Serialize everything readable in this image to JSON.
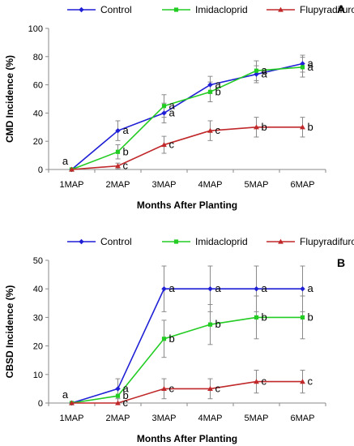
{
  "chart_data": [
    {
      "type": "line",
      "panel_label": "A",
      "categories": [
        "1MAP",
        "2MAP",
        "3MAP",
        "4MAP",
        "5MAP",
        "6MAP"
      ],
      "xlabel": "Months After Planting",
      "ylabel": "CMD Incidence (%)",
      "ylim": [
        0,
        100
      ],
      "yticks": [
        0,
        20,
        40,
        60,
        80,
        100
      ],
      "legend_position": "top",
      "grid": false,
      "series": [
        {
          "name": "Control",
          "color": "#1f1fd6",
          "marker": "diamond",
          "values": [
            0,
            27.5,
            40,
            60,
            67.5,
            75
          ],
          "errors": [
            0,
            7,
            7,
            6,
            6,
            6
          ],
          "letters": [
            "a",
            "a",
            "a",
            "a",
            "a",
            "a"
          ]
        },
        {
          "name": "Imidacloprid",
          "color": "#22cc22",
          "marker": "square",
          "values": [
            0,
            12.5,
            45,
            55,
            70,
            72.5
          ],
          "errors": [
            0,
            5,
            8,
            7,
            7,
            7
          ],
          "letters": [
            "",
            "b",
            "a",
            "b",
            "a",
            "a"
          ]
        },
        {
          "name": "Flupyradifurone",
          "color": "#c0282a",
          "marker": "triangle",
          "values": [
            0,
            2.5,
            17.5,
            27.5,
            30,
            30
          ],
          "errors": [
            0,
            2,
            6,
            7,
            7,
            7
          ],
          "letters": [
            "",
            "c",
            "c",
            "c",
            "b",
            "b"
          ]
        }
      ]
    },
    {
      "type": "line",
      "panel_label": "B",
      "categories": [
        "1MAP",
        "2MAP",
        "3MAP",
        "4MAP",
        "5MAP",
        "6MAP"
      ],
      "xlabel": "Months After Planting",
      "ylabel": "CBSD Incidence (%)",
      "ylim": [
        0,
        50
      ],
      "yticks": [
        0,
        10,
        20,
        30,
        40,
        50
      ],
      "legend_position": "top",
      "grid": false,
      "series": [
        {
          "name": "Control",
          "color": "#1f1fd6",
          "marker": "diamond",
          "values": [
            0,
            5,
            40,
            40,
            40,
            40
          ],
          "errors": [
            0,
            3.5,
            8,
            8,
            8,
            8
          ],
          "letters": [
            "a",
            "a",
            "a",
            "a",
            "a",
            "a"
          ]
        },
        {
          "name": "Imidacloprid",
          "color": "#22cc22",
          "marker": "square",
          "values": [
            0,
            2.5,
            22.5,
            27.5,
            30,
            30
          ],
          "errors": [
            0,
            2.5,
            6.5,
            7,
            7.5,
            7.5
          ],
          "letters": [
            "",
            "b",
            "b",
            "b",
            "b",
            "b"
          ]
        },
        {
          "name": "Flupyradifurone",
          "color": "#c0282a",
          "marker": "triangle",
          "values": [
            0,
            0,
            5,
            5,
            7.5,
            7.5
          ],
          "errors": [
            0,
            0,
            3.5,
            3.5,
            4,
            4
          ],
          "letters": [
            "",
            "c",
            "c",
            "c",
            "c",
            "c"
          ]
        }
      ]
    }
  ]
}
